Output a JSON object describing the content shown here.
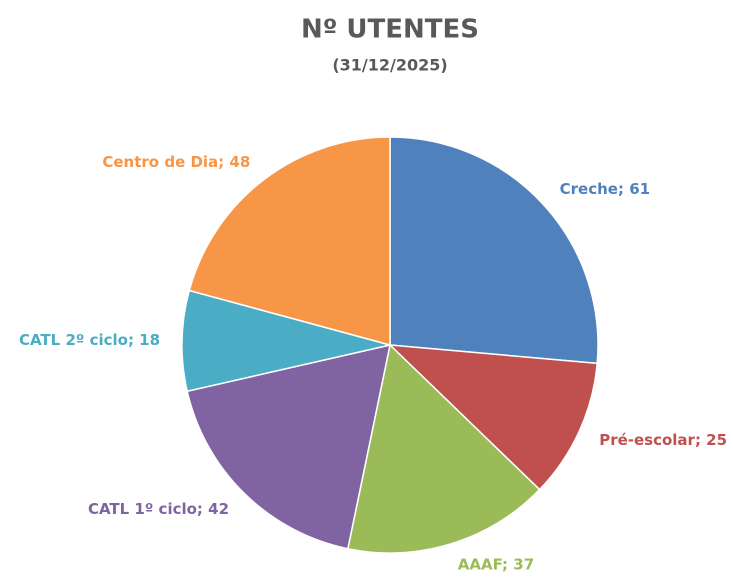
{
  "chart_data": {
    "type": "pie",
    "title": "Nº UTENTES",
    "subtitle": "(31/12/2025)",
    "categories": [
      "Creche",
      "Pré-escolar",
      "AAAF",
      "CATL 1º ciclo",
      "CATL 2º ciclo",
      "Centro de Dia"
    ],
    "values": [
      61,
      25,
      37,
      42,
      18,
      48
    ],
    "value_labels": [
      "Creche; 61",
      "Pré-escolar; 25",
      "AAAF; 37",
      "CATL 1º ciclo; 42",
      "CATL 2º ciclo; 18",
      "Centro de Dia; 48"
    ],
    "colors": [
      "#4f81bd",
      "#c0504d",
      "#9bbb59",
      "#8064a2",
      "#4bacc6",
      "#f79646"
    ]
  }
}
